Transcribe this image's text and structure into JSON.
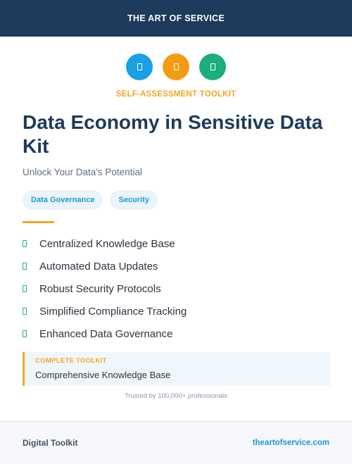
{
  "header": {
    "title": "THE ART OF SERVICE"
  },
  "icons": [
    {
      "name": "document-icon",
      "color": "#1aa0e4"
    },
    {
      "name": "document-icon",
      "color": "#f39c12"
    },
    {
      "name": "document-icon",
      "color": "#1aaf7d"
    }
  ],
  "kicker": "SELF-ASSESSMENT TOOLKIT",
  "title": "Data Economy in Sensitive Data Kit",
  "subtitle": "Unlock Your Data's Potential",
  "tags": [
    "Data Governance",
    "Security"
  ],
  "features": [
    "Centralized Knowledge Base",
    "Automated Data Updates",
    "Robust Security Protocols",
    "Simplified Compliance Tracking",
    "Enhanced Data Governance"
  ],
  "callout": {
    "title": "COMPLETE TOOLKIT",
    "text": "Comprehensive Knowledge Base"
  },
  "trusted": "Trusted by 100,000+ professionals",
  "footer": {
    "brand": "Digital Toolkit",
    "site": "theartofservice.com"
  },
  "colors": {
    "navy": "#1e3a5c",
    "accent_orange": "#f5a623",
    "accent_blue": "#1a9ad6",
    "accent_green": "#1aaf7d"
  }
}
